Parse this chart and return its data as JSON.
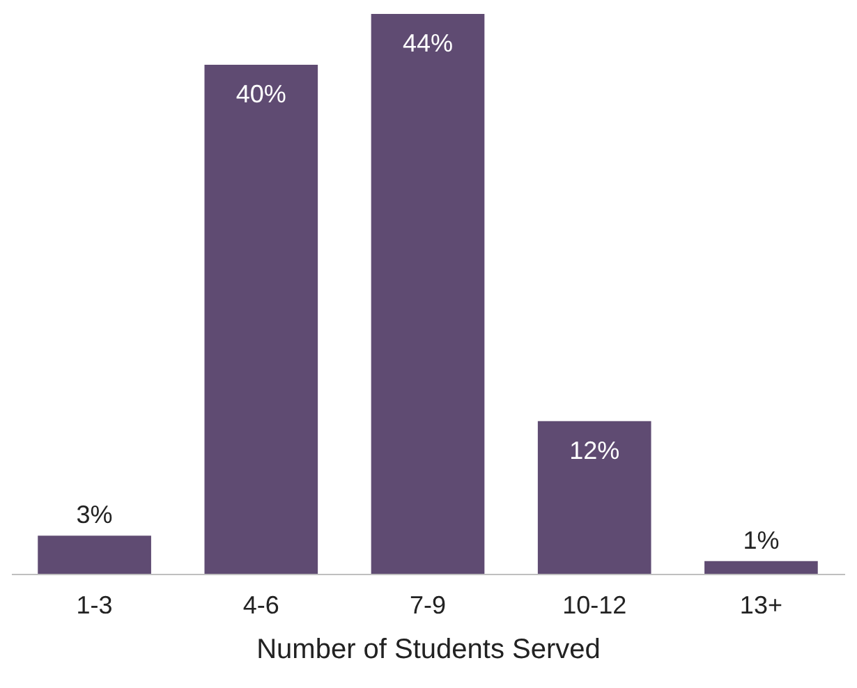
{
  "chart_data": {
    "type": "bar",
    "xlabel": "Number of Students Served",
    "categories": [
      "1-3",
      "4-6",
      "7-9",
      "10-12",
      "13+"
    ],
    "values": [
      3,
      40,
      44,
      12,
      1
    ],
    "value_labels": [
      "3%",
      "40%",
      "44%",
      "12%",
      "1%"
    ],
    "color": "#5f4b72"
  }
}
